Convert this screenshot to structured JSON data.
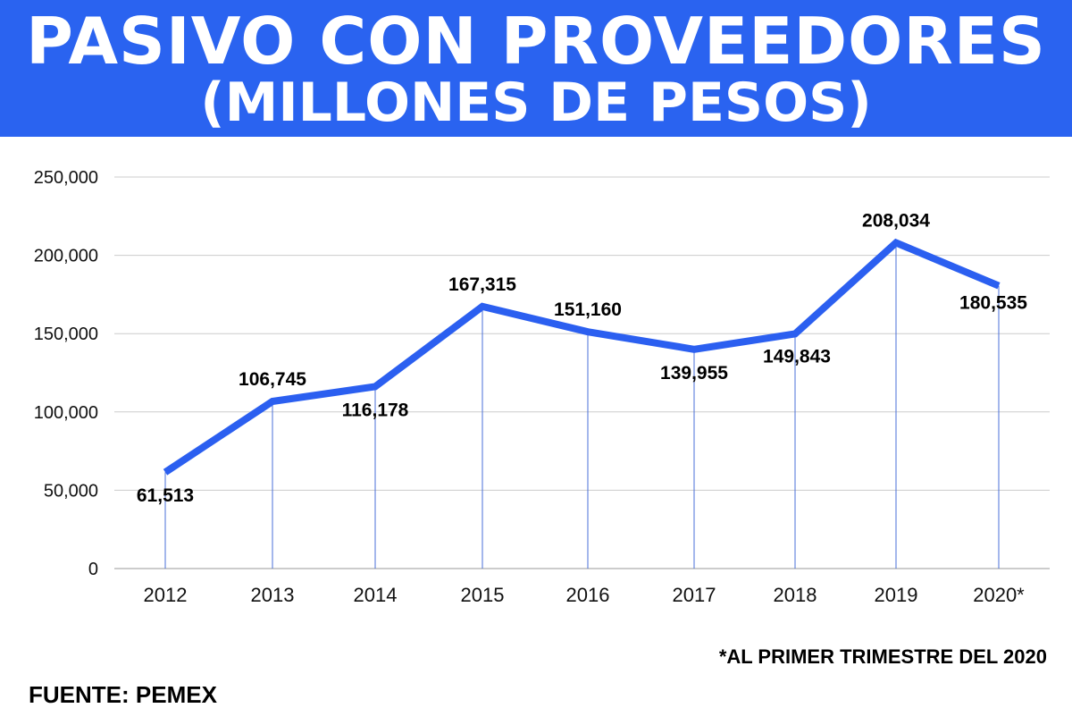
{
  "header": {
    "title_line1": "PASIVO CON PROVEEDORES",
    "title_line2": "(MILLONES DE PESOS)"
  },
  "footnote": "*AL PRIMER TRIMESTRE DEL 2020",
  "source": "FUENTE: PEMEX",
  "colors": {
    "header": "#2a63f0",
    "line": "#2b5ff0",
    "drop_line": "#4a6fd8",
    "grid": "#cccccc"
  },
  "chart_data": {
    "type": "line",
    "title": "PASIVO CON PROVEEDORES (MILLONES DE PESOS)",
    "xlabel": "",
    "ylabel": "",
    "categories": [
      "2012",
      "2013",
      "2014",
      "2015",
      "2016",
      "2017",
      "2018",
      "2019",
      "2020*"
    ],
    "values": [
      61513,
      106745,
      116178,
      167315,
      151160,
      139955,
      149843,
      208034,
      180535
    ],
    "data_labels": [
      "61,513",
      "106,745",
      "116,178",
      "167,315",
      "151,160",
      "139,955",
      "149,843",
      "208,034",
      "180,535"
    ],
    "label_placement": [
      "below",
      "above",
      "below",
      "above",
      "above",
      "below",
      "below",
      "above",
      "below"
    ],
    "ylim": [
      0,
      250000
    ],
    "yticks": [
      0,
      50000,
      100000,
      150000,
      200000,
      250000
    ],
    "ytick_labels": [
      "0",
      "50,000",
      "100,000",
      "150,000",
      "200,000",
      "250,000"
    ],
    "grid": true,
    "legend": "none"
  }
}
